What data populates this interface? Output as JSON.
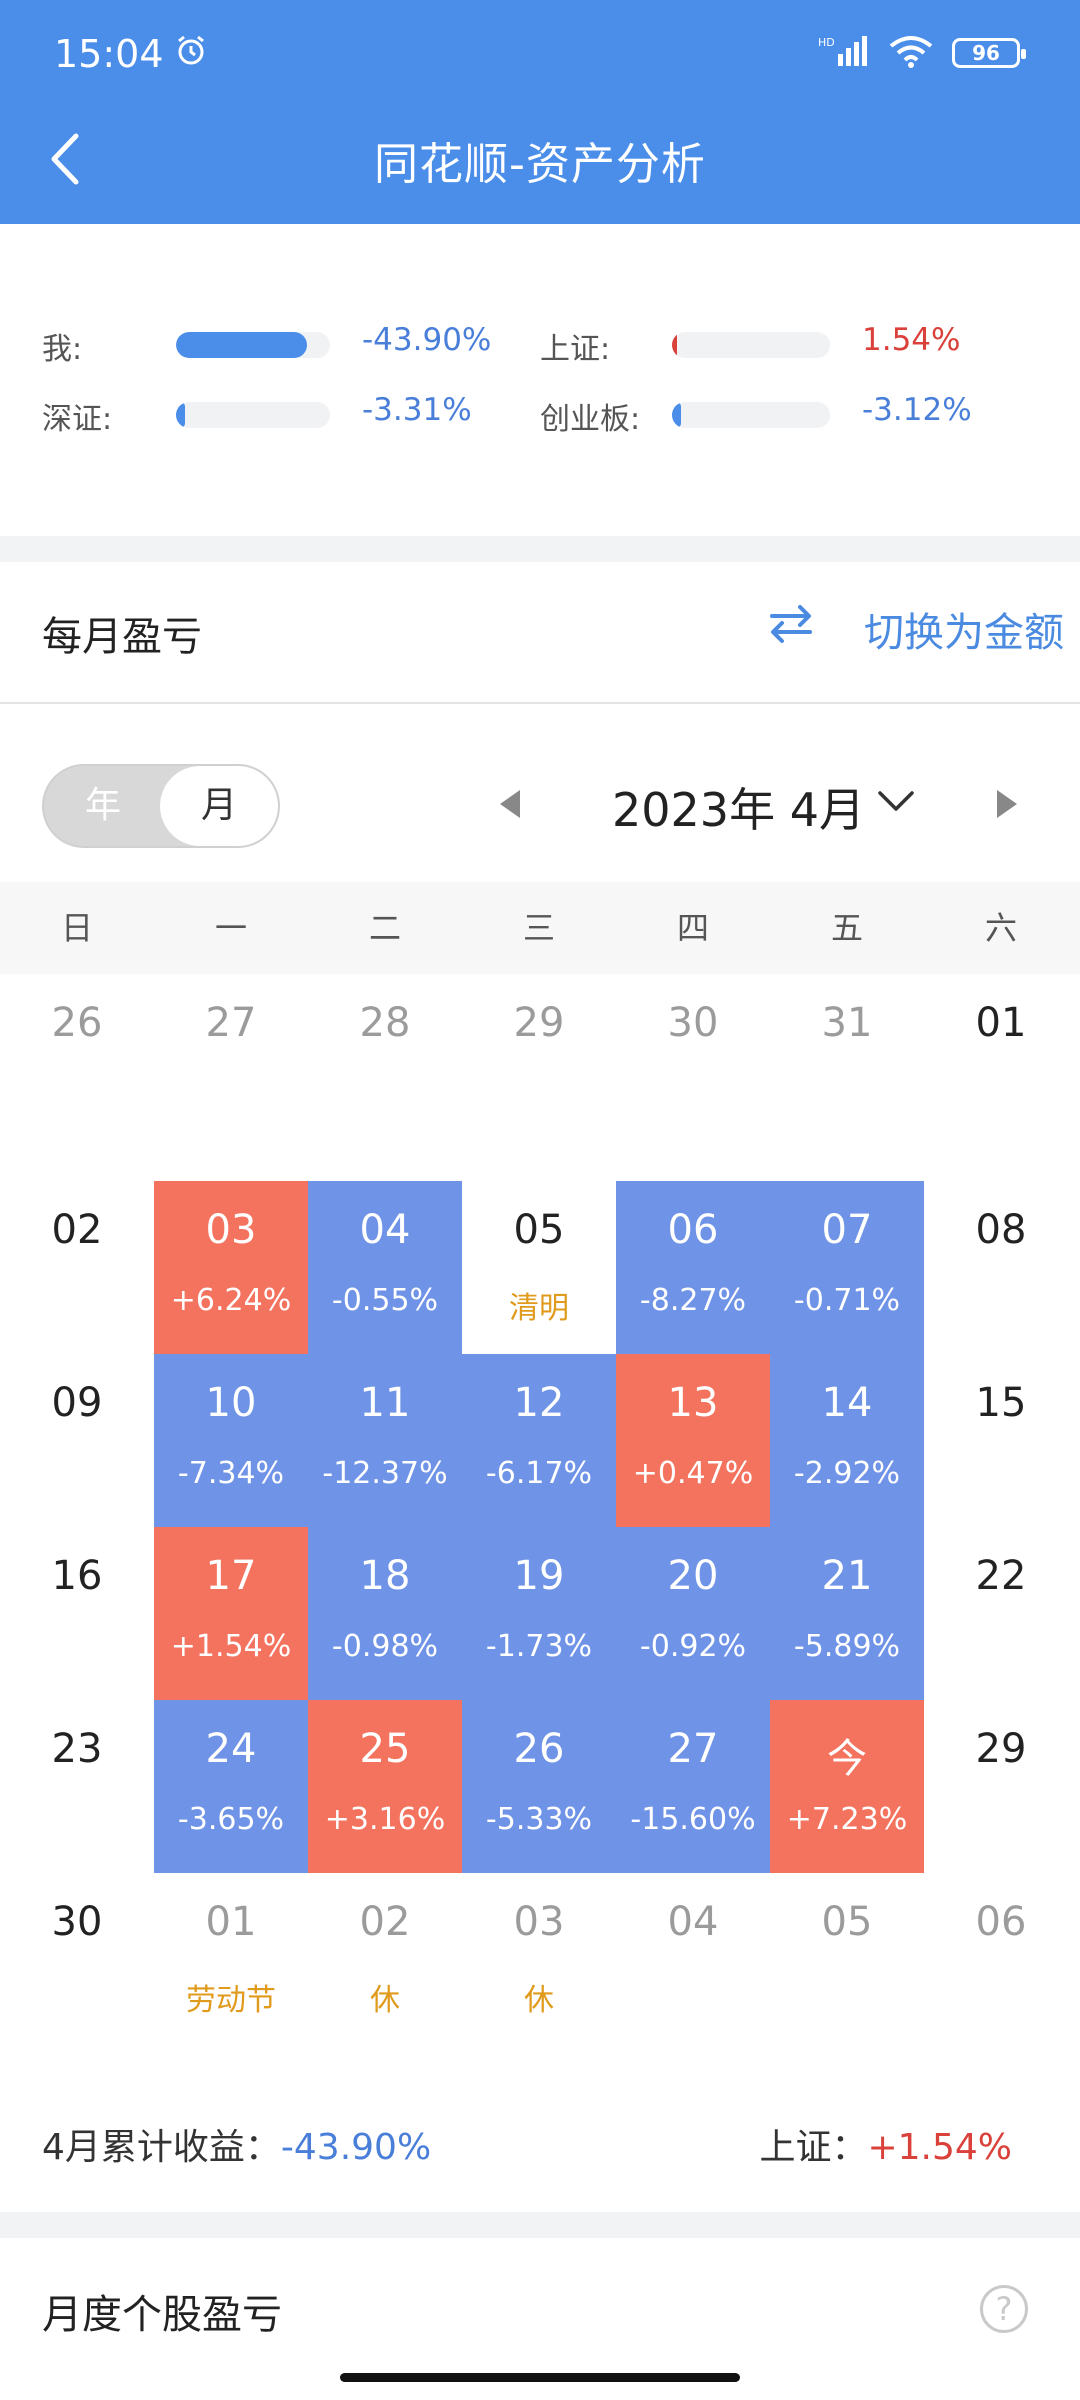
{
  "status": {
    "time": "15:04",
    "battery": "96",
    "signal": "HD"
  },
  "nav": {
    "title": "同花顺-资产分析"
  },
  "compare": {
    "me": {
      "label": "我:",
      "value": "-43.90%",
      "fill": 0.85
    },
    "sh": {
      "label": "上证:",
      "value": "1.54%",
      "fill": 0.03
    },
    "sz": {
      "label": "深证:",
      "value": "-3.31%",
      "fill": 0.06
    },
    "cy": {
      "label": "创业板:",
      "value": "-3.12%",
      "fill": 0.06
    }
  },
  "monthly": {
    "title": "每月盈亏",
    "switch_label": "切换为金额"
  },
  "toggle": {
    "year": "年",
    "month": "月"
  },
  "month_selector": {
    "label": "2023年 4月"
  },
  "weekdays": [
    "日",
    "一",
    "二",
    "三",
    "四",
    "五",
    "六"
  ],
  "calendar": [
    [
      {
        "d": "26",
        "s": "muted"
      },
      {
        "d": "27",
        "s": "muted"
      },
      {
        "d": "28",
        "s": "muted"
      },
      {
        "d": "29",
        "s": "muted"
      },
      {
        "d": "30",
        "s": "muted"
      },
      {
        "d": "31",
        "s": "muted"
      },
      {
        "d": "01",
        "s": "plain"
      }
    ],
    [
      {
        "d": "02",
        "s": "plain"
      },
      {
        "d": "03",
        "p": "+6.24%",
        "s": "pos"
      },
      {
        "d": "04",
        "p": "-0.55%",
        "s": "neg"
      },
      {
        "d": "05",
        "p": "清明",
        "s": "plain",
        "h": true
      },
      {
        "d": "06",
        "p": "-8.27%",
        "s": "neg"
      },
      {
        "d": "07",
        "p": "-0.71%",
        "s": "neg"
      },
      {
        "d": "08",
        "s": "plain"
      }
    ],
    [
      {
        "d": "09",
        "s": "plain"
      },
      {
        "d": "10",
        "p": "-7.34%",
        "s": "neg"
      },
      {
        "d": "11",
        "p": "-12.37%",
        "s": "neg"
      },
      {
        "d": "12",
        "p": "-6.17%",
        "s": "neg"
      },
      {
        "d": "13",
        "p": "+0.47%",
        "s": "pos"
      },
      {
        "d": "14",
        "p": "-2.92%",
        "s": "neg"
      },
      {
        "d": "15",
        "s": "plain"
      }
    ],
    [
      {
        "d": "16",
        "s": "plain"
      },
      {
        "d": "17",
        "p": "+1.54%",
        "s": "pos"
      },
      {
        "d": "18",
        "p": "-0.98%",
        "s": "neg"
      },
      {
        "d": "19",
        "p": "-1.73%",
        "s": "neg"
      },
      {
        "d": "20",
        "p": "-0.92%",
        "s": "neg"
      },
      {
        "d": "21",
        "p": "-5.89%",
        "s": "neg"
      },
      {
        "d": "22",
        "s": "plain"
      }
    ],
    [
      {
        "d": "23",
        "s": "plain"
      },
      {
        "d": "24",
        "p": "-3.65%",
        "s": "neg"
      },
      {
        "d": "25",
        "p": "+3.16%",
        "s": "pos"
      },
      {
        "d": "26",
        "p": "-5.33%",
        "s": "neg"
      },
      {
        "d": "27",
        "p": "-15.60%",
        "s": "neg"
      },
      {
        "d": "今",
        "p": "+7.23%",
        "s": "pos"
      },
      {
        "d": "29",
        "s": "plain"
      }
    ],
    [
      {
        "d": "30",
        "s": "plain"
      },
      {
        "d": "01",
        "p": "劳动节",
        "s": "muted",
        "h": true
      },
      {
        "d": "02",
        "p": "休",
        "s": "muted",
        "h": true
      },
      {
        "d": "03",
        "p": "休",
        "s": "muted",
        "h": true
      },
      {
        "d": "04",
        "s": "muted"
      },
      {
        "d": "05",
        "s": "muted"
      },
      {
        "d": "06",
        "s": "muted"
      }
    ]
  ],
  "summary": {
    "month_label": "4月累计收益：",
    "month_value": "-43.90%",
    "index_label": "上证：",
    "index_value": "+1.54%"
  },
  "stock_section": {
    "title": "月度个股盈亏",
    "help": "?"
  },
  "colors": {
    "primary": "#4a8eea",
    "up": "#f4735f",
    "down": "#6f93e6",
    "holiday": "#e09a1c"
  }
}
